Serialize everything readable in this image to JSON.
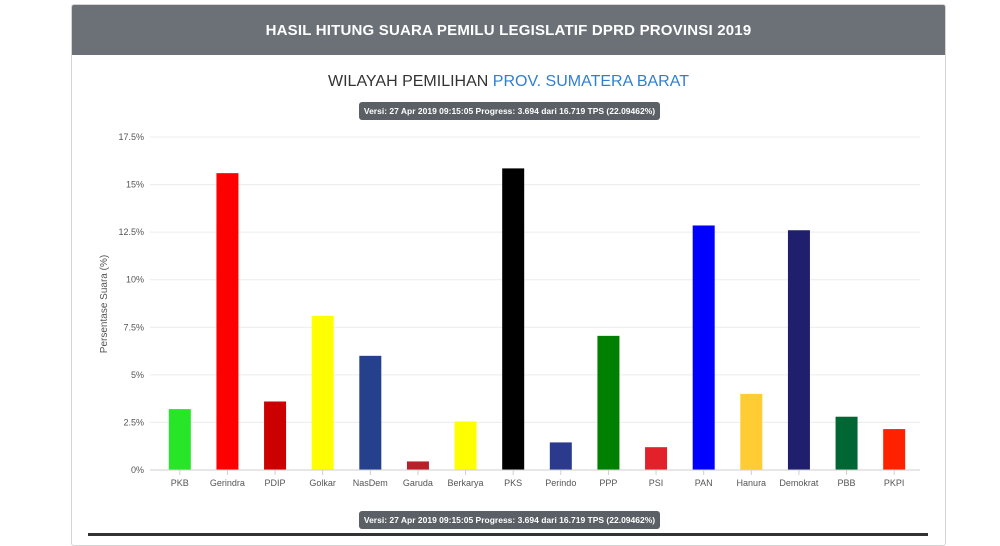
{
  "header": {
    "title": "HASIL HITUNG SUARA PEMILU LEGISLATIF DPRD PROVINSI 2019"
  },
  "region": {
    "prefix": "WILAYAH PEMILIHAN",
    "name": "PROV. SUMATERA BARAT"
  },
  "version_badge": "Versi: 27 Apr 2019 09:15:05 Progress: 3.694 dari 16.719 TPS (22.09462%)",
  "chart_data": {
    "type": "bar",
    "title": "",
    "xlabel": "",
    "ylabel": "Persentase Suara (%)",
    "ylim": [
      0,
      17.5
    ],
    "yticks": [
      "0%",
      "2.5%",
      "5%",
      "7.5%",
      "10%",
      "12.5%",
      "15%",
      "17.5%"
    ],
    "categories": [
      "PKB",
      "Gerindra",
      "PDIP",
      "Golkar",
      "NasDem",
      "Garuda",
      "Berkarya",
      "PKS",
      "Perindo",
      "PPP",
      "PSI",
      "PAN",
      "Hanura",
      "Demokrat",
      "PBB",
      "PKPI"
    ],
    "values": [
      3.2,
      15.6,
      3.6,
      8.1,
      6.0,
      0.45,
      2.55,
      15.85,
      1.45,
      7.05,
      1.2,
      12.85,
      4.0,
      12.6,
      2.8,
      2.15
    ],
    "colors": [
      "#27e527",
      "#ff0000",
      "#cc0000",
      "#ffff00",
      "#25418e",
      "#b8202a",
      "#ffff00",
      "#000000",
      "#2b3a8c",
      "#008000",
      "#e2212a",
      "#0000ff",
      "#ffcc33",
      "#1f1f6e",
      "#006633",
      "#ff2200"
    ],
    "grid": true,
    "legend": "none"
  }
}
